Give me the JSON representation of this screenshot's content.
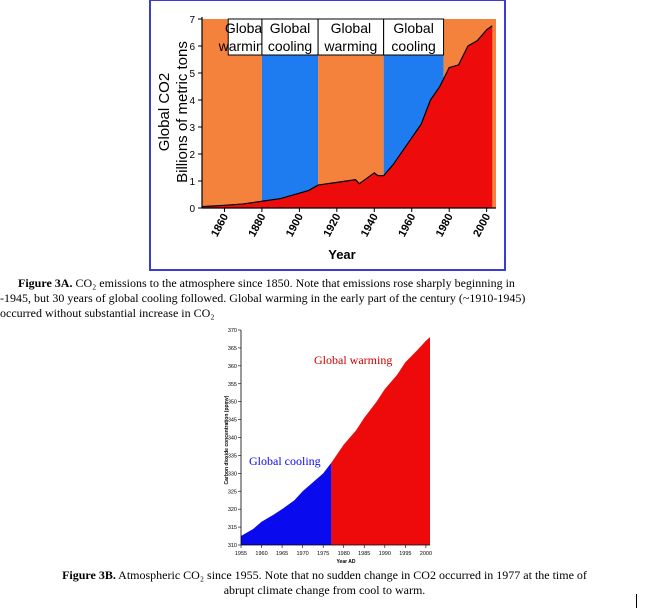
{
  "chart_data": [
    {
      "type": "area",
      "xlabel": "Year",
      "ylabel": "Global CO2",
      "ylabel2": "Billions of metric tons",
      "ylim": [
        0,
        7
      ],
      "xlim": [
        1848,
        2005
      ],
      "x_ticks": [
        "1860",
        "1880",
        "1900",
        "1920",
        "1940",
        "1960",
        "1980",
        "2000"
      ],
      "y_ticks": [
        "0",
        "1",
        "2",
        "3",
        "4",
        "5",
        "6",
        "7"
      ],
      "bands": [
        {
          "x0": 1848,
          "x1": 1880,
          "color": "#f4823c"
        },
        {
          "x0": 1880,
          "x1": 1910,
          "color": "#1e7bf0",
          "label": [
            "Global",
            "cooling"
          ]
        },
        {
          "x0": 1910,
          "x1": 1945,
          "color": "#f4823c",
          "label": [
            "Global",
            "warming"
          ]
        },
        {
          "x0": 1945,
          "x1": 1977,
          "color": "#1e7bf0",
          "label": [
            "Global",
            "cooling"
          ]
        },
        {
          "x0": 1977,
          "x1": 2005,
          "color": "#f4823c"
        }
      ],
      "band_label_left": [
        "Global",
        "warming"
      ],
      "series": [
        {
          "color": "#ee0b0b",
          "x": [
            1848,
            1860,
            1870,
            1880,
            1890,
            1900,
            1905,
            1910,
            1915,
            1920,
            1925,
            1930,
            1932,
            1937,
            1940,
            1942,
            1945,
            1950,
            1955,
            1960,
            1965,
            1970,
            1975,
            1980,
            1985,
            1990,
            1995,
            2000,
            2003
          ],
          "values": [
            0.05,
            0.1,
            0.15,
            0.25,
            0.35,
            0.55,
            0.65,
            0.85,
            0.9,
            0.95,
            1.0,
            1.05,
            0.9,
            1.15,
            1.3,
            1.2,
            1.2,
            1.6,
            2.1,
            2.6,
            3.1,
            4.0,
            4.5,
            5.2,
            5.3,
            6.0,
            6.2,
            6.6,
            6.75
          ]
        }
      ]
    },
    {
      "type": "area",
      "xlabel": "Year AD",
      "ylabel": "Carbon dioxide concentration (ppmv)",
      "ylim": [
        310,
        370
      ],
      "xlim": [
        1955,
        2001
      ],
      "x_ticks": [
        "1955",
        "1960",
        "1965",
        "1970",
        "1975",
        "1980",
        "1985",
        "1990",
        "1995",
        "2000"
      ],
      "y_ticks": [
        "310",
        "315",
        "320",
        "325",
        "330",
        "335",
        "340",
        "345",
        "350",
        "355",
        "360",
        "365",
        "370"
      ],
      "split_year": 1977,
      "colors": {
        "before": "#0a0aee",
        "after": "#ee0a0a"
      },
      "annotations": [
        {
          "text": "Global cooling",
          "color": "#0a0aee"
        },
        {
          "text": "Global warming",
          "color": "#cc0000"
        }
      ],
      "series": [
        {
          "x": [
            1955,
            1958,
            1960,
            1963,
            1965,
            1968,
            1970,
            1972,
            1975,
            1977,
            1980,
            1983,
            1985,
            1988,
            1990,
            1993,
            1995,
            1998,
            2000,
            2001
          ],
          "values": [
            312.5,
            314.5,
            316.5,
            318.5,
            320.0,
            322.5,
            325.0,
            327.0,
            330.0,
            333.0,
            338.0,
            342.0,
            345.5,
            350.0,
            353.5,
            357.5,
            361.0,
            364.5,
            367.0,
            368.0
          ]
        }
      ]
    }
  ],
  "captions": {
    "fig3a_label": "Figure 3A.",
    "fig3a_line1": "  CO₂ emissions to the atmosphere since 1850.  Note that emissions rose sharply beginning in",
    "fig3a_line2": "-1945, but 30 years of global cooling followed.  Global warming in the early part of the century (~1910-1945)",
    "fig3a_line3": "occurred without substantial increase in CO₂",
    "fig3b_label": "Figure 3B.",
    "fig3b_line1": "  Atmospheric CO₂ since 1955. Note that no sudden change in CO2 occurred in 1977 at the time of",
    "fig3b_line2": "abrupt climate change from cool to warm."
  }
}
